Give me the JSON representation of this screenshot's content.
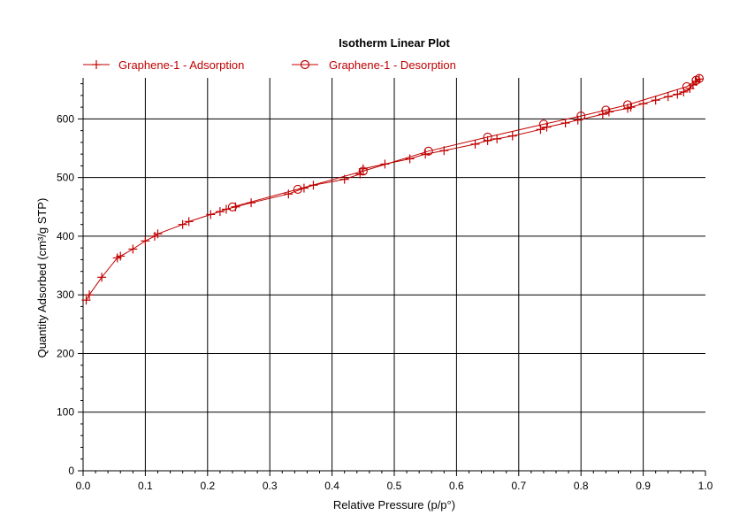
{
  "chart_data": {
    "type": "line",
    "title": "Isotherm Linear Plot",
    "xlabel": "Relative Pressure (p/p°)",
    "ylabel": "Quantity Adsorbed (cm³/g STP)",
    "xlim": [
      0.0,
      1.0
    ],
    "ylim": [
      0,
      670
    ],
    "x_ticks": [
      0.0,
      0.1,
      0.2,
      0.3,
      0.4,
      0.5,
      0.6,
      0.7,
      0.8,
      0.9,
      1.0
    ],
    "x_tick_labels": [
      "0.0",
      "0.1",
      "0.2",
      "0.3",
      "0.4",
      "0.5",
      "0.6",
      "0.7",
      "0.8",
      "0.9",
      "1.0"
    ],
    "y_ticks": [
      0,
      100,
      200,
      300,
      400,
      500,
      600
    ],
    "y_tick_labels": [
      "0",
      "100",
      "200",
      "300",
      "400",
      "500",
      "600"
    ],
    "grid": true,
    "legend_position": "top-left",
    "series": [
      {
        "name": "Graphene-1 - Adsorption",
        "color": "#c00000",
        "marker": "plus",
        "points": [
          [
            0.005,
            291
          ],
          [
            0.01,
            300
          ],
          [
            0.03,
            330
          ],
          [
            0.055,
            363
          ],
          [
            0.06,
            366
          ],
          [
            0.08,
            378
          ],
          [
            0.1,
            392
          ],
          [
            0.115,
            400
          ],
          [
            0.12,
            404
          ],
          [
            0.16,
            420
          ],
          [
            0.17,
            425
          ],
          [
            0.205,
            437
          ],
          [
            0.22,
            442
          ],
          [
            0.23,
            446
          ],
          [
            0.245,
            450
          ],
          [
            0.27,
            457
          ],
          [
            0.33,
            472
          ],
          [
            0.355,
            482
          ],
          [
            0.37,
            487
          ],
          [
            0.42,
            497
          ],
          [
            0.445,
            506
          ],
          [
            0.45,
            515
          ],
          [
            0.485,
            523
          ],
          [
            0.525,
            532
          ],
          [
            0.55,
            540
          ],
          [
            0.58,
            546
          ],
          [
            0.63,
            557
          ],
          [
            0.65,
            563
          ],
          [
            0.665,
            566
          ],
          [
            0.69,
            571
          ],
          [
            0.735,
            582
          ],
          [
            0.745,
            586
          ],
          [
            0.775,
            593
          ],
          [
            0.795,
            598
          ],
          [
            0.835,
            608
          ],
          [
            0.845,
            612
          ],
          [
            0.875,
            618
          ],
          [
            0.88,
            620
          ],
          [
            0.9,
            626
          ],
          [
            0.92,
            632
          ],
          [
            0.94,
            638
          ],
          [
            0.955,
            642
          ],
          [
            0.965,
            646
          ],
          [
            0.975,
            652
          ],
          [
            0.98,
            658
          ],
          [
            0.985,
            664
          ],
          [
            0.99,
            668
          ]
        ]
      },
      {
        "name": "Graphene-1 - Desorption",
        "color": "#c00000",
        "marker": "circle",
        "points": [
          [
            0.99,
            669
          ],
          [
            0.985,
            666
          ],
          [
            0.97,
            655
          ],
          [
            0.875,
            624
          ],
          [
            0.84,
            615
          ],
          [
            0.8,
            605
          ],
          [
            0.74,
            591
          ],
          [
            0.65,
            569
          ],
          [
            0.555,
            545
          ],
          [
            0.45,
            511
          ],
          [
            0.345,
            480
          ],
          [
            0.24,
            450
          ]
        ]
      }
    ]
  }
}
